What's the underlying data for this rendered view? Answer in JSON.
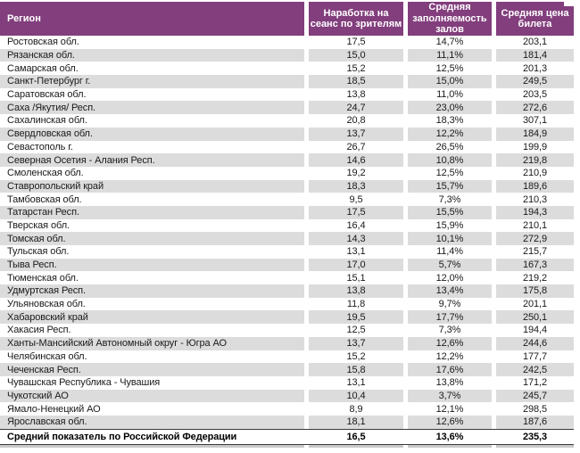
{
  "table": {
    "columns": [
      "Регион",
      "Наработка на сеанс по зрителям",
      "Средняя заполняемость залов",
      "Средняя цена билета"
    ],
    "rows": [
      {
        "region": "Ростовская обл.",
        "per_session": "17,5",
        "occupancy": "14,7%",
        "price": "203,1"
      },
      {
        "region": "Рязанская обл.",
        "per_session": "15,0",
        "occupancy": "11,1%",
        "price": "181,4"
      },
      {
        "region": "Самарская обл.",
        "per_session": "15,2",
        "occupancy": "12,5%",
        "price": "201,3"
      },
      {
        "region": "Санкт-Петербург г.",
        "per_session": "18,5",
        "occupancy": "15,0%",
        "price": "249,5"
      },
      {
        "region": "Саратовская обл.",
        "per_session": "13,8",
        "occupancy": "11,0%",
        "price": "203,5"
      },
      {
        "region": "Саха /Якутия/ Респ.",
        "per_session": "24,7",
        "occupancy": "23,0%",
        "price": "272,6"
      },
      {
        "region": "Сахалинская обл.",
        "per_session": "20,8",
        "occupancy": "18,3%",
        "price": "307,1"
      },
      {
        "region": "Свердловская обл.",
        "per_session": "13,7",
        "occupancy": "12,2%",
        "price": "184,9"
      },
      {
        "region": "Севастополь г.",
        "per_session": "26,7",
        "occupancy": "26,5%",
        "price": "199,9"
      },
      {
        "region": "Северная Осетия - Алания Респ.",
        "per_session": "14,6",
        "occupancy": "10,8%",
        "price": "219,8"
      },
      {
        "region": "Смоленская обл.",
        "per_session": "19,2",
        "occupancy": "12,5%",
        "price": "210,9"
      },
      {
        "region": "Ставропольский край",
        "per_session": "18,3",
        "occupancy": "15,7%",
        "price": "189,6"
      },
      {
        "region": "Тамбовская обл.",
        "per_session": "9,5",
        "occupancy": "7,3%",
        "price": "210,3"
      },
      {
        "region": "Татарстан Респ.",
        "per_session": "17,5",
        "occupancy": "15,5%",
        "price": "194,3"
      },
      {
        "region": "Тверская обл.",
        "per_session": "16,4",
        "occupancy": "15,9%",
        "price": "210,1"
      },
      {
        "region": "Томская обл.",
        "per_session": "14,3",
        "occupancy": "10,1%",
        "price": "272,9"
      },
      {
        "region": "Тульская обл.",
        "per_session": "13,1",
        "occupancy": "11,4%",
        "price": "215,7"
      },
      {
        "region": "Тыва Респ.",
        "per_session": "17,0",
        "occupancy": "5,7%",
        "price": "167,3"
      },
      {
        "region": "Тюменская обл.",
        "per_session": "15,1",
        "occupancy": "12,0%",
        "price": "219,2"
      },
      {
        "region": "Удмуртская Респ.",
        "per_session": "13,8",
        "occupancy": "13,4%",
        "price": "175,8"
      },
      {
        "region": "Ульяновская обл.",
        "per_session": "11,8",
        "occupancy": "9,7%",
        "price": "201,1"
      },
      {
        "region": "Хабаровский край",
        "per_session": "19,5",
        "occupancy": "17,7%",
        "price": "250,1"
      },
      {
        "region": "Хакасия Респ.",
        "per_session": "12,5",
        "occupancy": "7,3%",
        "price": "194,4"
      },
      {
        "region": "Ханты-Мансийский Автономный округ - Югра АО",
        "per_session": "13,7",
        "occupancy": "12,6%",
        "price": "244,6"
      },
      {
        "region": "Челябинская обл.",
        "per_session": "15,2",
        "occupancy": "12,2%",
        "price": "177,7"
      },
      {
        "region": "Чеченская Респ.",
        "per_session": "15,8",
        "occupancy": "17,6%",
        "price": "242,5"
      },
      {
        "region": "Чувашская Республика - Чувашия",
        "per_session": "13,1",
        "occupancy": "13,8%",
        "price": "171,2"
      },
      {
        "region": "Чукотский АО",
        "per_session": "10,4",
        "occupancy": "3,7%",
        "price": "245,7"
      },
      {
        "region": "Ямало-Ненецкий АО",
        "per_session": "8,9",
        "occupancy": "12,1%",
        "price": "298,5"
      },
      {
        "region": "Ярославская обл.",
        "per_session": "18,1",
        "occupancy": "12,6%",
        "price": "187,6"
      }
    ],
    "summary": {
      "region": "Средний показатель по Российской Федерации",
      "per_session": "16,5",
      "occupancy": "13,6%",
      "price": "235,3"
    }
  },
  "colors": {
    "header_bg": "#823E7D",
    "header_text": "#FFFFFF",
    "stripe": "#DCDCDC",
    "body_text": "#1A1A1A",
    "summary_border": "#3A3A3A",
    "shadow": "#C9C9C9"
  }
}
